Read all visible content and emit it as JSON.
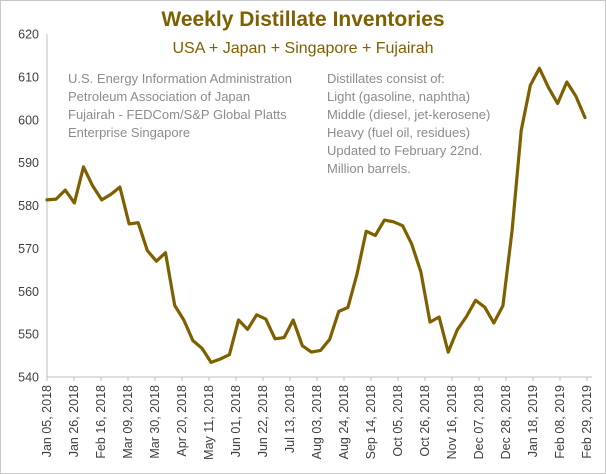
{
  "chart_data": {
    "type": "line",
    "title": "Weekly Distillate Inventories",
    "subtitle": "USA + Japan + Singapore + Fujairah",
    "xlabel": "",
    "ylabel": "",
    "ylim": [
      540,
      620
    ],
    "yticks": [
      540,
      550,
      560,
      570,
      580,
      590,
      600,
      610,
      620
    ],
    "grid": false,
    "line_color": "#7f6000",
    "title_color": "#7f6000",
    "sources": [
      "U.S. Energy Information Administration",
      "Petroleum Association of Japan",
      "Fujairah - FEDCom/S&P Global Platts",
      "Enterprise Singapore"
    ],
    "notes": [
      "Distillates consist of:",
      "Light (gasoline, naphtha)",
      "Middle (diesel, jet-kerosene)",
      "Heavy (fuel oil, residues)",
      "Updated to February 22nd.",
      "Million barrels."
    ],
    "x_tick_labels": [
      "Jan 05, 2018",
      "Jan 26, 2018",
      "Feb 16, 2018",
      "Mar 09, 2018",
      "Mar 30, 2018",
      "Apr 20, 2018",
      "May 11, 2018",
      "Jun 01, 2018",
      "Jun 22, 2018",
      "Jul 13, 2018",
      "Aug 03, 2018",
      "Aug 24, 2018",
      "Sep 14, 2018",
      "Oct 05, 2018",
      "Oct 26, 2018",
      "Nov 16, 2018",
      "Dec 07, 2018",
      "Dec 28, 2018",
      "Jan 18, 2019",
      "Feb 08, 2019",
      "Feb 29, 2019"
    ],
    "series": [
      {
        "name": "Distillate Inventories",
        "values": [
          581.3,
          581.5,
          583.6,
          580.6,
          589.0,
          584.6,
          581.3,
          582.6,
          584.3,
          575.7,
          576.0,
          569.5,
          567.0,
          569.0,
          556.7,
          553.3,
          548.5,
          546.7,
          543.4,
          544.2,
          545.2,
          553.3,
          551.1,
          554.5,
          553.5,
          548.9,
          549.2,
          553.3,
          547.3,
          545.8,
          546.2,
          548.8,
          555.3,
          556.2,
          564.0,
          574.0,
          573.0,
          576.6,
          576.2,
          575.3,
          571.0,
          564.5,
          552.8,
          554.0,
          545.8,
          551.0,
          554.1,
          557.9,
          556.3,
          552.6,
          556.6,
          574.2,
          597.5,
          608.0,
          612.0,
          607.5,
          603.8,
          608.8,
          605.5,
          600.5
        ]
      }
    ]
  }
}
